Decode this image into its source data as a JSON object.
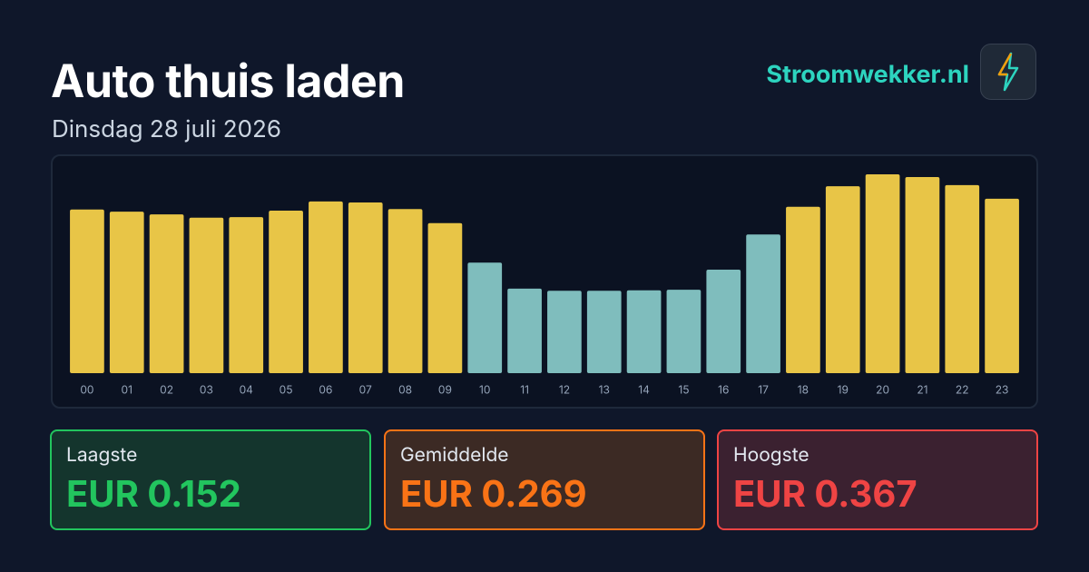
{
  "chart_data": {
    "type": "bar",
    "title": "Auto thuis laden",
    "subtitle": "Dinsdag 28 juli 2026",
    "categories": [
      "00",
      "01",
      "02",
      "03",
      "04",
      "05",
      "06",
      "07",
      "08",
      "09",
      "10",
      "11",
      "12",
      "13",
      "14",
      "15",
      "16",
      "17",
      "18",
      "19",
      "20",
      "21",
      "22",
      "23"
    ],
    "values": [
      0.302,
      0.298,
      0.293,
      0.287,
      0.288,
      0.3,
      0.317,
      0.315,
      0.303,
      0.277,
      0.204,
      0.156,
      0.152,
      0.152,
      0.153,
      0.154,
      0.191,
      0.256,
      0.307,
      0.345,
      0.367,
      0.362,
      0.347,
      0.322
    ],
    "colors": [
      "#e8c547",
      "#e8c547",
      "#e8c547",
      "#e8c547",
      "#e8c547",
      "#e8c547",
      "#e8c547",
      "#e8c547",
      "#e8c547",
      "#e8c547",
      "#7fbdbd",
      "#7fbdbd",
      "#7fbdbd",
      "#7fbdbd",
      "#7fbdbd",
      "#7fbdbd",
      "#7fbdbd",
      "#7fbdbd",
      "#e8c547",
      "#e8c547",
      "#e8c547",
      "#e8c547",
      "#e8c547",
      "#e8c547"
    ],
    "ylim": [
      0,
      0.367
    ]
  },
  "brand": "Stroomwekker.nl",
  "stats": [
    {
      "label": "Laagste",
      "value": "EUR 0.152"
    },
    {
      "label": "Gemiddelde",
      "value": "EUR 0.269"
    },
    {
      "label": "Hoogste",
      "value": "EUR 0.367"
    }
  ]
}
